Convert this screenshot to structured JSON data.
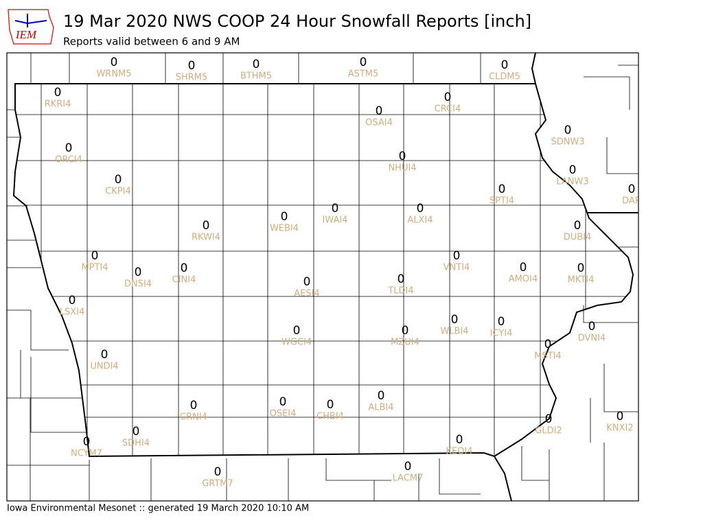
{
  "header": {
    "title": "19 Mar 2020 NWS COOP 24 Hour Snowfall Reports [inch]",
    "subtitle": "Reports valid between 6 and 9 AM",
    "logo": "IEM"
  },
  "footer": "Iowa Environmental Mesonet :: generated 19 March 2020 10:10 AM",
  "stations": [
    {
      "id": "WRNM5",
      "value": 0
    },
    {
      "id": "SHRM5",
      "value": 0
    },
    {
      "id": "BTHM5",
      "value": 0
    },
    {
      "id": "ASTM5",
      "value": 0
    },
    {
      "id": "CLDM5",
      "value": 0
    },
    {
      "id": "RKRI4",
      "value": 0
    },
    {
      "id": "CRCI4",
      "value": 0
    },
    {
      "id": "OSAI4",
      "value": 0
    },
    {
      "id": "SDNW3",
      "value": 0
    },
    {
      "id": "ORCI4",
      "value": 0
    },
    {
      "id": "NHUI4",
      "value": 0
    },
    {
      "id": "LANW3",
      "value": 0
    },
    {
      "id": "CKPI4",
      "value": 0
    },
    {
      "id": "SPTI4",
      "value": 0
    },
    {
      "id": "DAR",
      "value": 0
    },
    {
      "id": "IWAI4",
      "value": 0
    },
    {
      "id": "ALXI4",
      "value": 0
    },
    {
      "id": "RKWI4",
      "value": 0
    },
    {
      "id": "WEBI4",
      "value": 0
    },
    {
      "id": "DUBI4",
      "value": 0
    },
    {
      "id": "MPTI4",
      "value": 0
    },
    {
      "id": "VNTI4",
      "value": 0
    },
    {
      "id": "AMOI4",
      "value": 0
    },
    {
      "id": "MKTI4",
      "value": 0
    },
    {
      "id": "DNSI4",
      "value": 0
    },
    {
      "id": "CINI4",
      "value": 0
    },
    {
      "id": "TLDI4",
      "value": 0
    },
    {
      "id": "AESI4",
      "value": 0
    },
    {
      "id": "LSXI4",
      "value": 0
    },
    {
      "id": "WLBI4",
      "value": 0
    },
    {
      "id": "ICYI4",
      "value": 0
    },
    {
      "id": "DVNI4",
      "value": 0
    },
    {
      "id": "WGCI4",
      "value": 0
    },
    {
      "id": "MZUI4",
      "value": 0
    },
    {
      "id": "MSTI4",
      "value": 0
    },
    {
      "id": "UNDI4",
      "value": 0
    },
    {
      "id": "OSEI4",
      "value": 0
    },
    {
      "id": "CHBI4",
      "value": 0
    },
    {
      "id": "ALBI4",
      "value": 0
    },
    {
      "id": "CRNI4",
      "value": 0
    },
    {
      "id": "KNXI2",
      "value": 0
    },
    {
      "id": "GLDI2",
      "value": 0
    },
    {
      "id": "SDHI4",
      "value": 0
    },
    {
      "id": "NCYM7",
      "value": 0
    },
    {
      "id": "KEOI4",
      "value": 0
    },
    {
      "id": "LACM7",
      "value": 0
    },
    {
      "id": "GRTM7",
      "value": 0
    }
  ]
}
